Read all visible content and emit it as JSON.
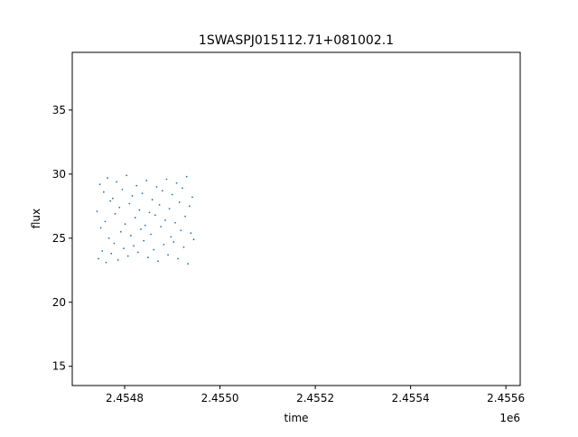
{
  "chart_data": {
    "type": "scatter",
    "title": "1SWASPJ015112.71+081002.1",
    "xlabel": "time",
    "ylabel": "flux",
    "x_offset_label": "1e6",
    "xlim": [
      2454690,
      2455630
    ],
    "ylim": [
      13.5,
      39.5
    ],
    "x_ticks": [
      {
        "value": 2454800,
        "label": "2.4548"
      },
      {
        "value": 2455000,
        "label": "2.4550"
      },
      {
        "value": 2455200,
        "label": "2.4552"
      },
      {
        "value": 2455400,
        "label": "2.4554"
      },
      {
        "value": 2455600,
        "label": "2.4556"
      }
    ],
    "y_ticks": [
      {
        "value": 15,
        "label": "15"
      },
      {
        "value": 20,
        "label": "20"
      },
      {
        "value": 25,
        "label": "25"
      },
      {
        "value": 30,
        "label": "30"
      },
      {
        "value": 35,
        "label": "35"
      }
    ],
    "grid": false,
    "marker_color": "#1f77b4",
    "series": [
      {
        "points": [
          [
            2454742,
            27.1
          ],
          [
            2454745,
            23.4
          ],
          [
            2454748,
            29.2
          ],
          [
            2454750,
            25.8
          ],
          [
            2454753,
            24.0
          ],
          [
            2454756,
            28.6
          ],
          [
            2454759,
            26.3
          ],
          [
            2454761,
            23.1
          ],
          [
            2454764,
            29.7
          ],
          [
            2454767,
            25.0
          ],
          [
            2454770,
            27.9
          ],
          [
            2454772,
            23.8
          ],
          [
            2454775,
            28.1
          ],
          [
            2454778,
            24.6
          ],
          [
            2454780,
            26.9
          ],
          [
            2454783,
            29.4
          ],
          [
            2454786,
            23.3
          ],
          [
            2454789,
            27.4
          ],
          [
            2454792,
            25.5
          ],
          [
            2454795,
            28.8
          ],
          [
            2454798,
            24.2
          ],
          [
            2454801,
            26.1
          ],
          [
            2454804,
            29.9
          ],
          [
            2454807,
            23.6
          ],
          [
            2454810,
            27.7
          ],
          [
            2454813,
            25.2
          ],
          [
            2454816,
            28.3
          ],
          [
            2454819,
            24.4
          ],
          [
            2454822,
            26.6
          ],
          [
            2454825,
            29.1
          ],
          [
            2454828,
            23.9
          ],
          [
            2454831,
            27.2
          ],
          [
            2454834,
            25.7
          ],
          [
            2454837,
            28.5
          ],
          [
            2454840,
            24.8
          ],
          [
            2454843,
            26.0
          ],
          [
            2454846,
            29.5
          ],
          [
            2454849,
            23.5
          ],
          [
            2454852,
            27.0
          ],
          [
            2454855,
            25.3
          ],
          [
            2454858,
            28.0
          ],
          [
            2454861,
            24.1
          ],
          [
            2454864,
            26.8
          ],
          [
            2454867,
            29.0
          ],
          [
            2454870,
            23.2
          ],
          [
            2454873,
            27.6
          ],
          [
            2454876,
            25.9
          ],
          [
            2454879,
            28.7
          ],
          [
            2454882,
            24.5
          ],
          [
            2454885,
            26.4
          ],
          [
            2454888,
            29.6
          ],
          [
            2454891,
            23.7
          ],
          [
            2454894,
            27.3
          ],
          [
            2454897,
            25.1
          ],
          [
            2454900,
            28.4
          ],
          [
            2454903,
            24.7
          ],
          [
            2454906,
            26.2
          ],
          [
            2454909,
            29.3
          ],
          [
            2454912,
            23.4
          ],
          [
            2454915,
            27.8
          ],
          [
            2454918,
            25.6
          ],
          [
            2454921,
            28.9
          ],
          [
            2454924,
            24.3
          ],
          [
            2454927,
            26.7
          ],
          [
            2454930,
            29.8
          ],
          [
            2454933,
            23.0
          ],
          [
            2454936,
            27.5
          ],
          [
            2454939,
            25.4
          ],
          [
            2454942,
            28.2
          ],
          [
            2454945,
            24.9
          ]
        ]
      }
    ]
  }
}
